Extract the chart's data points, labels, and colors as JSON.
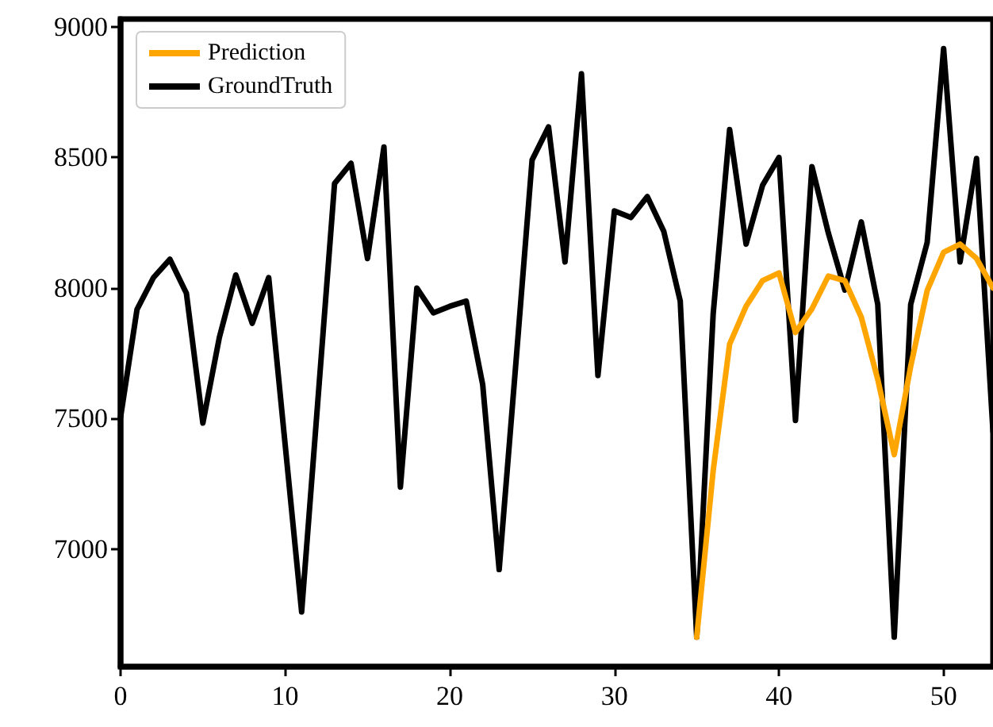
{
  "chart_data": {
    "type": "line",
    "x": [
      0,
      1,
      2,
      3,
      4,
      5,
      6,
      7,
      8,
      9,
      10,
      11,
      12,
      13,
      14,
      15,
      16,
      17,
      18,
      19,
      20,
      21,
      22,
      23,
      24,
      25,
      26,
      27,
      28,
      29,
      30,
      31,
      32,
      33,
      34,
      35,
      36,
      37,
      38,
      39,
      40,
      41,
      42,
      43,
      44,
      45,
      46,
      47,
      48,
      49,
      50,
      51,
      52,
      53
    ],
    "series": [
      {
        "name": "Prediction",
        "color": "#ffa500",
        "x": [
          35,
          36,
          37,
          38,
          39,
          40,
          41,
          42,
          43,
          44,
          45,
          46,
          47,
          48,
          49,
          50,
          51,
          52,
          53
        ],
        "values": [
          6663,
          7300,
          7785,
          7930,
          8028,
          8058,
          7830,
          7920,
          8046,
          8028,
          7888,
          7650,
          7362,
          7700,
          7990,
          8137,
          8168,
          8113,
          8000
        ]
      },
      {
        "name": "GroundTruth",
        "color": "#000000",
        "values": [
          7505,
          7918,
          8040,
          8110,
          7980,
          7483,
          7810,
          8050,
          7865,
          8040,
          7400,
          6760,
          7580,
          8400,
          8478,
          8113,
          8540,
          7238,
          8000,
          7905,
          7930,
          7950,
          7630,
          6922,
          7700,
          8490,
          8617,
          8100,
          8820,
          7665,
          8295,
          8270,
          8350,
          8217,
          7950,
          6663,
          7900,
          8607,
          8168,
          8393,
          8500,
          7493,
          8465,
          8210,
          7992,
          8253,
          7937,
          6663,
          7937,
          8174,
          8917,
          8100,
          8496,
          7450
        ]
      }
    ],
    "xlim": [
      0,
      53
    ],
    "xticks": [
      0,
      10,
      20,
      30,
      40,
      50
    ],
    "ylim": [
      6550,
      9030
    ],
    "yticks": [
      7000,
      7500,
      8000,
      8500,
      9000
    ],
    "grid": false,
    "legend": "top left",
    "marker": "none",
    "line_style": "solid"
  }
}
